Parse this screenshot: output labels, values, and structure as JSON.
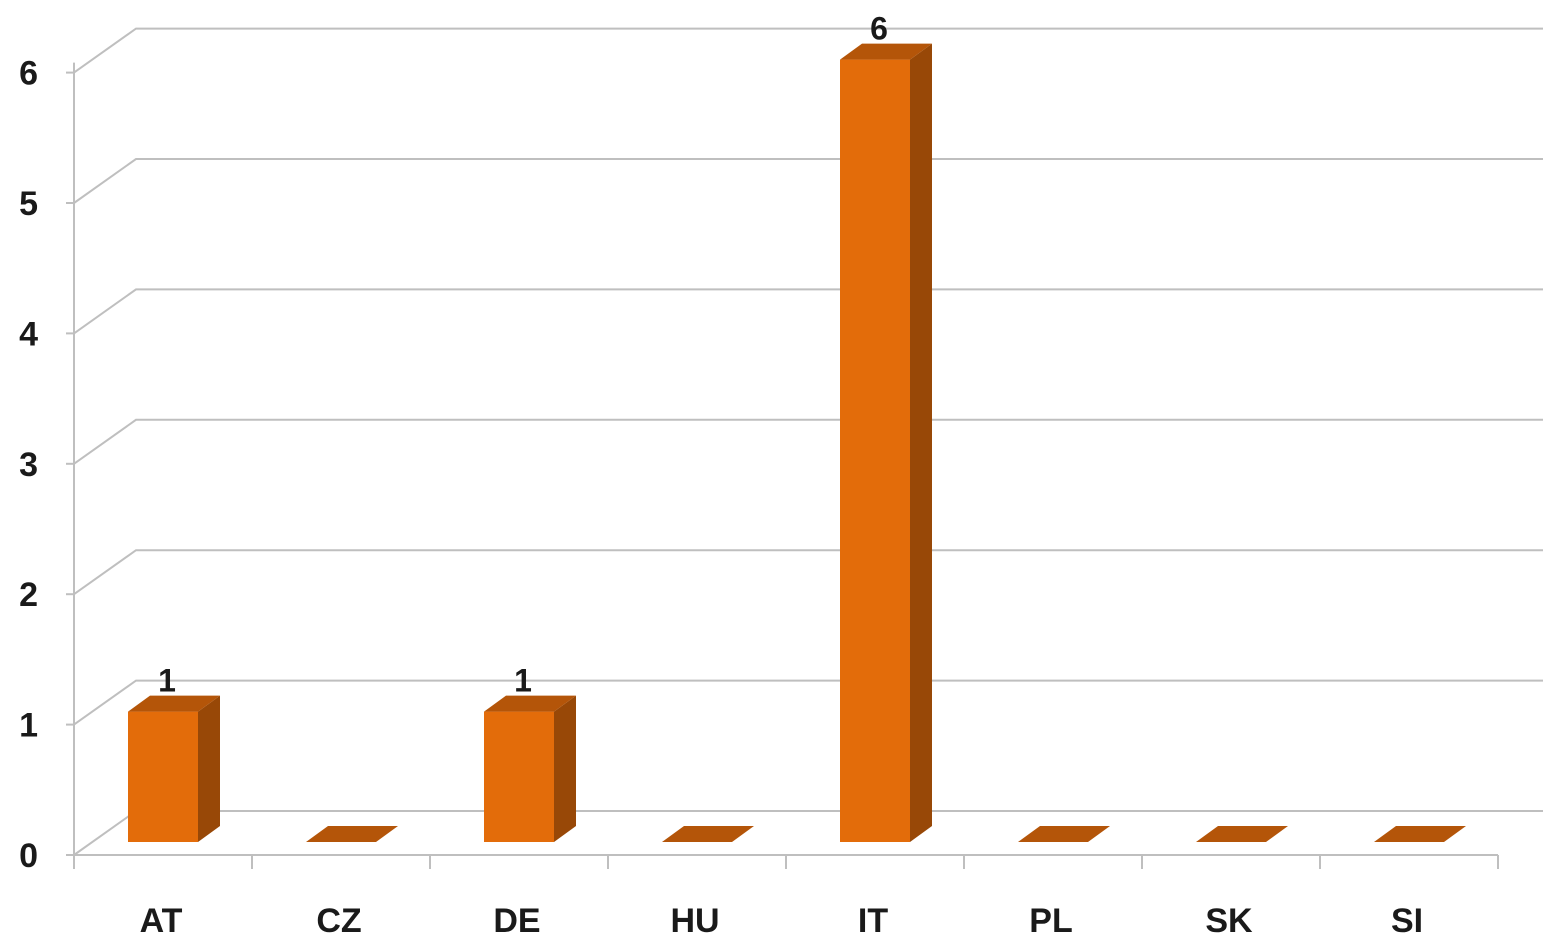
{
  "chart_data": {
    "type": "bar",
    "style": "3d-column",
    "categories": [
      "AT",
      "CZ",
      "DE",
      "HU",
      "IT",
      "PL",
      "SK",
      "SI"
    ],
    "values": [
      1,
      0,
      1,
      0,
      6,
      0,
      0,
      0
    ],
    "data_labels": [
      "1",
      "",
      "1",
      "",
      "6",
      "",
      "",
      ""
    ],
    "yticks": [
      "0",
      "1",
      "2",
      "3",
      "4",
      "5",
      "6"
    ],
    "ylim": [
      0,
      6
    ],
    "grid": true,
    "legend": "none",
    "colors": {
      "bar_front": "#E36C0A",
      "bar_side": "#984807",
      "bar_top": "#B45509",
      "grid": "#BFBFBF"
    }
  }
}
